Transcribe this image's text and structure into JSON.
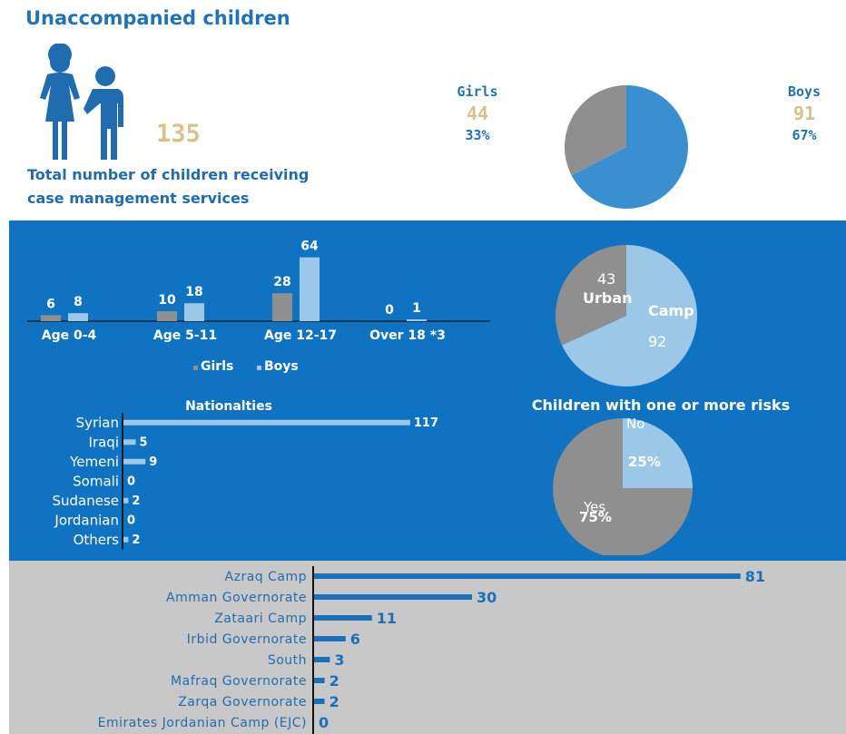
{
  "header": {
    "title": "Unaccompanied children",
    "total_value": "135",
    "total_label_line1": "Total number of children receiving",
    "total_label_line2": "case management services"
  },
  "gender": {
    "girls": {
      "label": "Girls",
      "count": "44",
      "percent": "33%"
    },
    "boys": {
      "label": "Boys",
      "count": "91",
      "percent": "67%"
    }
  },
  "colors": {
    "blue_panel": "#0f73c2",
    "gray_panel": "#c8c8c8",
    "girls_gray": "#8f8f8f",
    "boys_light_blue": "#9cc8e8",
    "pie_blue": "#3a8fd0",
    "bar_dark_blue": "#1a70bb",
    "accent_gold": "#d7c389"
  },
  "chart_data": [
    {
      "type": "pie",
      "labels": [
        "Girls",
        "Boys"
      ],
      "values": [
        44,
        91
      ],
      "percents": [
        "33%",
        "67%"
      ]
    },
    {
      "type": "bar",
      "categories": [
        "Age 0-4",
        "Age 5-11",
        "Age 12-17",
        "Over 18 *3"
      ],
      "series": [
        {
          "name": "Girls",
          "values": [
            6,
            10,
            28,
            0
          ]
        },
        {
          "name": "Boys",
          "values": [
            8,
            18,
            64,
            1
          ]
        }
      ],
      "legend": [
        "Girls",
        "Boys"
      ],
      "legend_position": "bottom"
    },
    {
      "type": "pie",
      "labels": [
        "Urban",
        "Camp"
      ],
      "values": [
        43,
        92
      ]
    },
    {
      "type": "bar",
      "orientation": "horizontal",
      "title": "Nationalties",
      "categories": [
        "Syrian",
        "Iraqi",
        "Yemeni",
        "Somali",
        "Sudanese",
        "Jordanian",
        "Others"
      ],
      "values": [
        117,
        5,
        9,
        0,
        2,
        0,
        2
      ]
    },
    {
      "type": "pie",
      "title": "Children with one or more risks",
      "labels": [
        "No",
        "Yes"
      ],
      "values": [
        25,
        75
      ],
      "percents": [
        "25%",
        "75%"
      ]
    },
    {
      "type": "bar",
      "orientation": "horizontal",
      "categories": [
        "Azraq Camp",
        "Amman Governorate",
        "Zataari Camp",
        "Irbid Governorate",
        "South",
        "Mafraq Governorate",
        "Zarqa Governorate",
        "Emirates Jordanian Camp (EJC)"
      ],
      "values": [
        81,
        30,
        11,
        6,
        3,
        2,
        2,
        0
      ]
    }
  ]
}
